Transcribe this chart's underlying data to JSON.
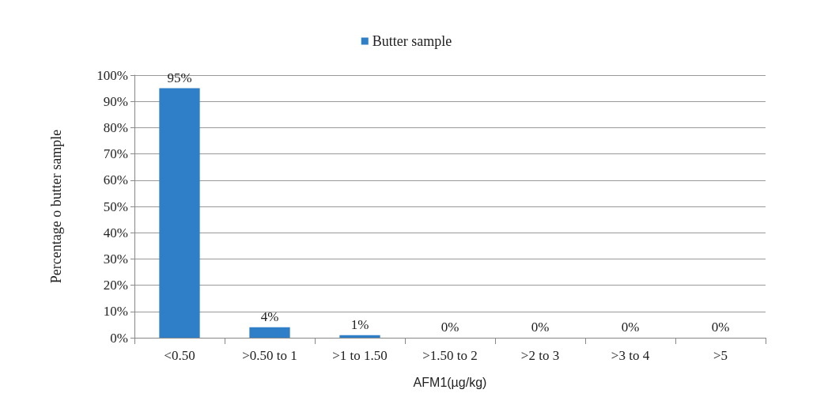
{
  "chart_data": {
    "type": "bar",
    "categories": [
      "<0.50",
      ">0.50 to 1",
      ">1 to 1.50",
      ">1.50 to 2",
      ">2 to 3",
      ">3 to 4",
      ">5"
    ],
    "series": [
      {
        "name": "Butter sample",
        "color": "#2f7fc8",
        "values": [
          95,
          4,
          1,
          0,
          0,
          0,
          0
        ]
      }
    ],
    "value_labels": [
      "95%",
      "4%",
      "1%",
      "0%",
      "0%",
      "0%",
      "0%"
    ],
    "xlabel": "AFM1(µg/kg)",
    "ylabel": "Percentage o butter sample",
    "ylim": [
      0,
      100
    ],
    "yticks": [
      {
        "value": 0,
        "label": "0%"
      },
      {
        "value": 10,
        "label": "10%"
      },
      {
        "value": 20,
        "label": "20%"
      },
      {
        "value": 30,
        "label": "30%"
      },
      {
        "value": 40,
        "label": "40%"
      },
      {
        "value": 50,
        "label": "50%"
      },
      {
        "value": 60,
        "label": "60%"
      },
      {
        "value": 70,
        "label": "70%"
      },
      {
        "value": 80,
        "label": "80%"
      },
      {
        "value": 90,
        "label": "90%"
      },
      {
        "value": 100,
        "label": "100%"
      }
    ],
    "grid": "y",
    "legend": "top"
  }
}
